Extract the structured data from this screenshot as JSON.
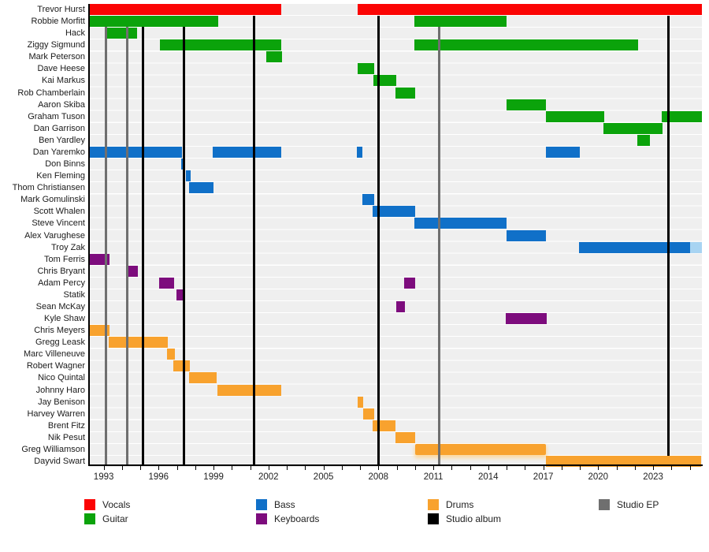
{
  "chart_data": {
    "type": "timeline",
    "title": "Band members timeline (Gantt-style, Wikipedia EasyTimeline layout)",
    "x_axis": {
      "year_min": 1992.2,
      "year_max": 2025.66,
      "tick_labels": [
        "1993",
        "1996",
        "1999",
        "2002",
        "2005",
        "2008",
        "2011",
        "2014",
        "2017",
        "2020",
        "2023"
      ],
      "tick_label_years": [
        1993,
        1996,
        1999,
        2002,
        2005,
        2008,
        2011,
        2014,
        2017,
        2020,
        2023
      ],
      "minor_tick_first": 1993,
      "minor_tick_last": 2025,
      "minor_tick_step": 1,
      "grid": "row-stripes"
    },
    "rows": [
      {
        "name": "Trevor Hurst",
        "role": "vocals",
        "bars": [
          [
            1992.2,
            2002.69
          ],
          [
            2006.87,
            2025.66
          ]
        ],
        "top": true
      },
      {
        "name": "Robbie Morfitt",
        "role": "guitar",
        "bars": [
          [
            1992.2,
            1999.25
          ],
          [
            2009.96,
            2014.98
          ]
        ],
        "top": true
      },
      {
        "name": "Hack",
        "role": "guitar",
        "bars": [
          [
            1993.17,
            1994.82
          ]
        ]
      },
      {
        "name": "Ziggy Sigmund",
        "role": "guitar",
        "bars": [
          [
            1996.05,
            2002.69
          ],
          [
            2009.96,
            2022.17
          ]
        ]
      },
      {
        "name": "Mark Peterson",
        "role": "guitar",
        "bars": [
          [
            2001.86,
            2002.72
          ]
        ]
      },
      {
        "name": "Dave Heese",
        "role": "guitar",
        "bars": [
          [
            2006.87,
            2007.77
          ]
        ]
      },
      {
        "name": "Kai Markus",
        "role": "guitar",
        "bars": [
          [
            2007.73,
            2008.98
          ]
        ]
      },
      {
        "name": "Rob Chamberlain",
        "role": "guitar",
        "bars": [
          [
            2008.93,
            2010.0
          ]
        ]
      },
      {
        "name": "Aaron Skiba",
        "role": "guitar",
        "bars": [
          [
            2014.98,
            2017.15
          ]
        ]
      },
      {
        "name": "Graham Tuson",
        "role": "guitar",
        "bars": [
          [
            2017.15,
            2020.31
          ],
          [
            2023.46,
            2025.66
          ]
        ]
      },
      {
        "name": "Dan Garrison",
        "role": "guitar",
        "bars": [
          [
            2020.29,
            2023.51
          ]
        ]
      },
      {
        "name": "Ben Yardley",
        "role": "guitar",
        "bars": [
          [
            2022.13,
            2022.82
          ]
        ]
      },
      {
        "name": "Dan Yaremko",
        "role": "bass",
        "bars": [
          [
            1992.2,
            1997.26
          ],
          [
            1998.95,
            2002.68
          ],
          [
            2006.83,
            2007.12
          ],
          [
            2017.13,
            2018.99
          ]
        ]
      },
      {
        "name": "Don Binns",
        "role": "bass",
        "bars": [
          [
            1997.23,
            1997.45
          ]
        ]
      },
      {
        "name": "Ken Fleming",
        "role": "bass",
        "bars": [
          [
            1997.49,
            1997.73
          ]
        ]
      },
      {
        "name": "Thom Christiansen",
        "role": "bass",
        "bars": [
          [
            1997.66,
            1999.0
          ]
        ]
      },
      {
        "name": "Mark Gomulinski",
        "role": "bass",
        "bars": [
          [
            2007.12,
            2007.77
          ]
        ]
      },
      {
        "name": "Scott Whalen",
        "role": "bass",
        "bars": [
          [
            2007.69,
            2010.0
          ]
        ]
      },
      {
        "name": "Steve Vincent",
        "role": "bass",
        "bars": [
          [
            2009.96,
            2014.98
          ]
        ]
      },
      {
        "name": "Alex Varughese",
        "role": "bass",
        "bars": [
          [
            2014.98,
            2017.17
          ]
        ]
      },
      {
        "name": "Troy Zak",
        "role": "bass",
        "bars": [
          [
            2018.96,
            2025.66
          ]
        ],
        "fade_end": true
      },
      {
        "name": "Tom Ferris",
        "role": "keyboards",
        "bars": [
          [
            1992.2,
            1993.32
          ]
        ]
      },
      {
        "name": "Chris Bryant",
        "role": "keyboards",
        "bars": [
          [
            1994.36,
            1994.87
          ]
        ]
      },
      {
        "name": "Adam Percy",
        "role": "keyboards",
        "bars": [
          [
            1996.01,
            1996.84
          ],
          [
            2009.41,
            2010.0
          ]
        ]
      },
      {
        "name": "Statik",
        "role": "keyboards",
        "bars": [
          [
            1996.98,
            1997.34
          ]
        ]
      },
      {
        "name": "Sean McKay",
        "role": "keyboards",
        "bars": [
          [
            2008.96,
            2009.44
          ]
        ]
      },
      {
        "name": "Kyle Shaw",
        "role": "keyboards",
        "bars": [
          [
            2014.96,
            2017.18
          ]
        ]
      },
      {
        "name": "Chris Meyers",
        "role": "drums",
        "bars": [
          [
            1992.2,
            1993.32
          ]
        ]
      },
      {
        "name": "Gregg Leask",
        "role": "drums",
        "bars": [
          [
            1993.26,
            1996.51
          ]
        ]
      },
      {
        "name": "Marc Villeneuve",
        "role": "drums",
        "bars": [
          [
            1996.47,
            1996.9
          ]
        ]
      },
      {
        "name": "Robert Wagner",
        "role": "drums",
        "bars": [
          [
            1996.8,
            1997.7
          ]
        ]
      },
      {
        "name": "Nico Quintal",
        "role": "drums",
        "bars": [
          [
            1997.66,
            1999.19
          ]
        ]
      },
      {
        "name": "Johnny Haro",
        "role": "drums",
        "bars": [
          [
            1999.19,
            2002.68
          ]
        ]
      },
      {
        "name": "Jay Benison",
        "role": "drums",
        "bars": [
          [
            2006.87,
            2007.16
          ]
        ]
      },
      {
        "name": "Harvey Warren",
        "role": "drums",
        "bars": [
          [
            2007.16,
            2007.77
          ]
        ]
      },
      {
        "name": "Brent Fitz",
        "role": "drums",
        "bars": [
          [
            2007.7,
            2008.92
          ]
        ]
      },
      {
        "name": "Nik Pesut",
        "role": "drums",
        "bars": [
          [
            2008.92,
            2010.02
          ]
        ]
      },
      {
        "name": "Greg Williamson",
        "role": "drums",
        "bars": [
          [
            2010.0,
            2017.15
          ]
        ],
        "fuzzy": true
      },
      {
        "name": "Dayvid Swart",
        "role": "drums",
        "bars": [
          [
            2017.15,
            2025.6
          ]
        ],
        "top": true
      }
    ],
    "album_release_lines": [
      {
        "year": 1995.15
      },
      {
        "year": 1997.37
      },
      {
        "year": 2001.19
      },
      {
        "year": 2008.01
      },
      {
        "year": 2023.83,
        "short": true
      }
    ],
    "ep_release_lines": [
      {
        "year": 1993.14
      },
      {
        "year": 1994.29
      },
      {
        "year": 2011.31
      }
    ],
    "legend": {
      "items": [
        {
          "label": "Vocals",
          "role": "vocals",
          "col": 0,
          "row": 0
        },
        {
          "label": "Guitar",
          "role": "guitar",
          "col": 0,
          "row": 1
        },
        {
          "label": "Bass",
          "role": "bass",
          "col": 1,
          "row": 0
        },
        {
          "label": "Keyboards",
          "role": "keyboards",
          "col": 1,
          "row": 1
        },
        {
          "label": "Drums",
          "role": "drums",
          "col": 2,
          "row": 0
        },
        {
          "label": "Studio album",
          "role": "album",
          "col": 2,
          "row": 1
        },
        {
          "label": "Studio EP",
          "role": "ep",
          "col": 3,
          "row": 0
        }
      ],
      "position": "bottom"
    },
    "colors": {
      "vocals": "#fb0404",
      "guitar": "#0ba30b",
      "bass": "#1070c8",
      "keyboards": "#7d0c7d",
      "drums": "#f8a22e",
      "album": "#000000",
      "ep": "#6f6f6f",
      "row_band": "#efefef",
      "fade_blue": "#a8d4f2",
      "drums_glow": "#fbd9a1"
    }
  }
}
